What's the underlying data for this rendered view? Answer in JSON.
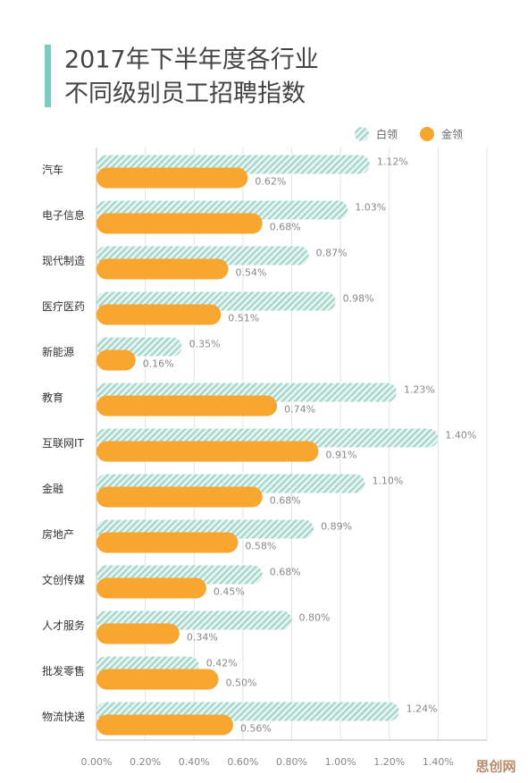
{
  "chart_data": {
    "type": "hbar",
    "title": [
      "2017年下半年度各行业",
      "不同级别员工招聘指数"
    ],
    "categories": [
      "汽车",
      "电子信息",
      "现代制造",
      "医疗医药",
      "新能源",
      "教育",
      "互联网IT",
      "金融",
      "房地产",
      "文创传媒",
      "人才服务",
      "批发零售",
      "物流快递"
    ],
    "series": [
      {
        "name": "白领",
        "color": "#a9dbd1",
        "pattern": "hatch",
        "values": [
          1.12,
          1.03,
          0.87,
          0.98,
          0.35,
          1.23,
          1.4,
          1.1,
          0.89,
          0.68,
          0.8,
          0.42,
          1.24
        ],
        "value_labels": [
          "1.12%",
          "1.03%",
          "0.87%",
          "0.98%",
          "0.35%",
          "1.23%",
          "1.40%",
          "1.10%",
          "0.89%",
          "0.68%",
          "0.80%",
          "0.42%",
          "1.24%"
        ]
      },
      {
        "name": "金领",
        "color": "#f7a630",
        "values": [
          0.62,
          0.68,
          0.54,
          0.51,
          0.16,
          0.74,
          0.91,
          0.68,
          0.58,
          0.45,
          0.34,
          0.5,
          0.56
        ],
        "value_labels": [
          "0.62%",
          "0.68%",
          "0.54%",
          "0.51%",
          "0.16%",
          "0.74%",
          "0.91%",
          "0.68%",
          "0.58%",
          "0.45%",
          "0.34%",
          "0.50%",
          "0.56%"
        ]
      }
    ],
    "xlim": [
      0,
      1.6
    ],
    "xticks": [
      {
        "value": 0,
        "label": "0.00%"
      },
      {
        "value": 0.2,
        "label": "0.20%"
      },
      {
        "value": 0.4,
        "label": "0.40%"
      },
      {
        "value": 0.6,
        "label": "0.60%"
      },
      {
        "value": 0.8,
        "label": "0.80%"
      },
      {
        "value": 1.0,
        "label": "1.00%"
      },
      {
        "value": 1.2,
        "label": "1.20%"
      },
      {
        "value": 1.4,
        "label": "1.40%"
      }
    ],
    "grid": true,
    "legend": "top-right",
    "watermark": "思创网"
  }
}
